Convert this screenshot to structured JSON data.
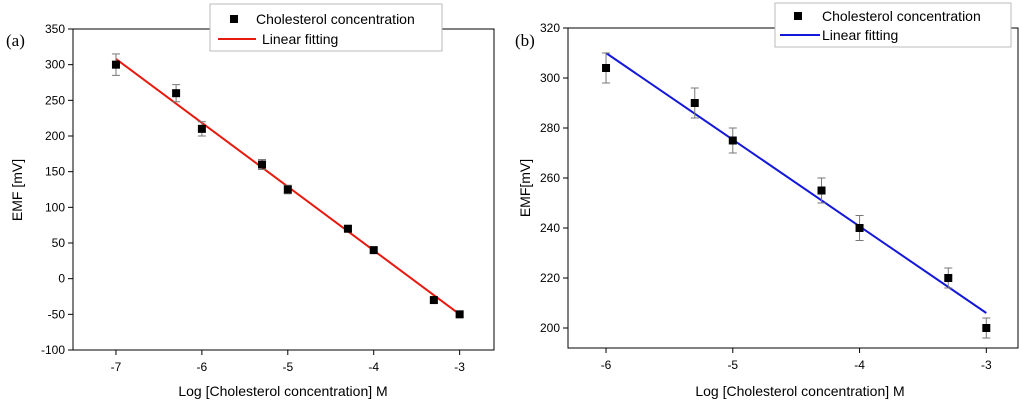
{
  "chart_data": [
    {
      "type": "scatter",
      "panel_label": "(a)",
      "xlabel": "Log [Cholesterol concentration] M",
      "ylabel": "EMF [mV]",
      "xlim": [
        -7.5,
        -2.6
      ],
      "ylim": [
        -100,
        350
      ],
      "xticks": [
        -7,
        -6,
        -5,
        -4,
        -3
      ],
      "yticks": [
        -100,
        -50,
        0,
        50,
        100,
        150,
        200,
        250,
        300,
        350
      ],
      "series": [
        {
          "name": "Cholesterol concentration",
          "kind": "points",
          "x": [
            -7,
            -6.3,
            -6,
            -5.3,
            -5,
            -4.3,
            -4,
            -3.3,
            -3
          ],
          "y": [
            300,
            260,
            210,
            160,
            125,
            70,
            40,
            -30,
            -50
          ],
          "err": [
            15,
            12,
            10,
            7,
            6,
            4,
            3,
            3,
            3
          ]
        },
        {
          "name": "Linear fitting",
          "kind": "line",
          "color": "#e8190e",
          "x": [
            -7,
            -3
          ],
          "y": [
            308,
            -50
          ]
        }
      ]
    },
    {
      "type": "scatter",
      "panel_label": "(b)",
      "xlabel": "Log [Cholesterol concentration] M",
      "ylabel": "EMF[mV]",
      "xlim": [
        -6.3,
        -2.75
      ],
      "ylim": [
        192,
        320
      ],
      "xticks": [
        -6,
        -5,
        -4,
        -3
      ],
      "yticks": [
        200,
        220,
        240,
        260,
        280,
        300,
        320
      ],
      "series": [
        {
          "name": "Cholesterol concentration",
          "kind": "points",
          "x": [
            -6,
            -5.3,
            -5,
            -4.3,
            -4,
            -3.3,
            -3
          ],
          "y": [
            304,
            290,
            275,
            255,
            240,
            220,
            200
          ],
          "err": [
            6,
            6,
            5,
            5,
            5,
            4,
            4
          ]
        },
        {
          "name": "Linear fitting",
          "kind": "line",
          "color": "#1418d8",
          "x": [
            -6,
            -3
          ],
          "y": [
            310,
            206
          ]
        }
      ]
    }
  ]
}
